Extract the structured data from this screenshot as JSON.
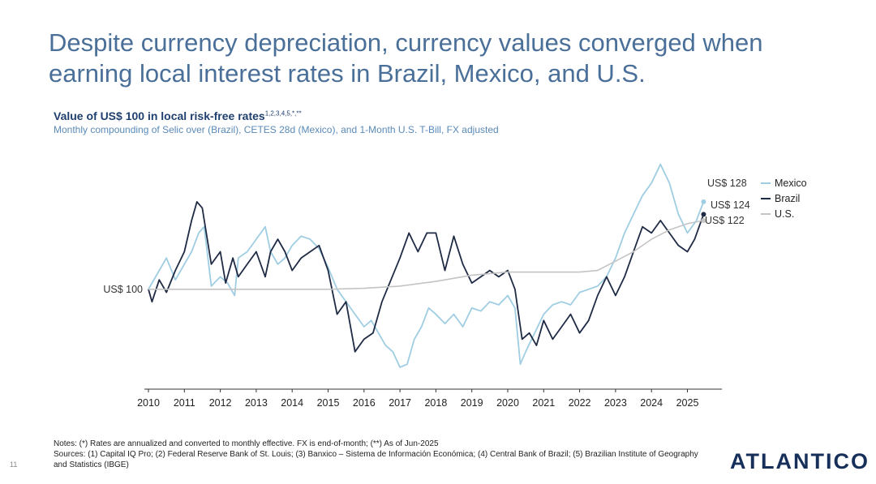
{
  "page": {
    "title": "Despite currency depreciation, currency values converged when earning local interest rates in Brazil, Mexico, and U.S.",
    "chart_title_main": "Value of US$ 100 in local risk-free rates",
    "chart_title_sup": "1,2,3,4,5,*,**",
    "chart_subtitle": "Monthly compounding of Selic over (Brazil), CETES 28d (Mexico), and 1-Month U.S. T-Bill, FX adjusted",
    "notes_line1": "Notes: (*) Rates are annualized and converted to monthly effective. FX is end-of-month; (**) As of Jun-2025",
    "notes_line2": "Sources: (1) Capital IQ Pro; (2) Federal Reserve Bank of St. Louis; (3) Banxico – Sistema de Información Económica; (4) Central Bank of Brazil; (5) Brazilian Institute of Geography and Statistics (IBGE)",
    "logo": "ATLANTICO",
    "page_number": "11"
  },
  "chart_data": {
    "type": "line",
    "x_ticks": [
      "2010",
      "2011",
      "2012",
      "2013",
      "2014",
      "2015",
      "2016",
      "2017",
      "2018",
      "2019",
      "2020",
      "2021",
      "2022",
      "2023",
      "2024",
      "2025"
    ],
    "xlim": [
      2010.0,
      2026.0
    ],
    "ylim": [
      68,
      142
    ],
    "grid": false,
    "legend_position": "right",
    "annotations": [
      {
        "text": "US$ 100",
        "x": 2010.0,
        "y": 100
      },
      {
        "text": "US$ 128",
        "series": "Mexico",
        "x": 2025.45,
        "y": 128
      },
      {
        "text": "US$ 124",
        "series": "Brazil",
        "x": 2025.45,
        "y": 124
      },
      {
        "text": "US$ 122",
        "series": "U.S.",
        "x": 2025.45,
        "y": 122
      }
    ],
    "series": [
      {
        "name": "Mexico",
        "color": "#9fcde2",
        "points": [
          [
            2010.0,
            100
          ],
          [
            2010.25,
            105
          ],
          [
            2010.5,
            110
          ],
          [
            2010.75,
            103
          ],
          [
            2011.0,
            108
          ],
          [
            2011.2,
            112
          ],
          [
            2011.4,
            118
          ],
          [
            2011.55,
            120
          ],
          [
            2011.75,
            101
          ],
          [
            2012.0,
            104
          ],
          [
            2012.2,
            102
          ],
          [
            2012.4,
            98
          ],
          [
            2012.5,
            110
          ],
          [
            2012.75,
            112
          ],
          [
            2013.0,
            116
          ],
          [
            2013.25,
            120
          ],
          [
            2013.4,
            112
          ],
          [
            2013.6,
            108
          ],
          [
            2013.8,
            110
          ],
          [
            2014.0,
            114
          ],
          [
            2014.25,
            117
          ],
          [
            2014.5,
            116
          ],
          [
            2014.75,
            113
          ],
          [
            2015.0,
            107
          ],
          [
            2015.25,
            100
          ],
          [
            2015.5,
            96
          ],
          [
            2015.75,
            92
          ],
          [
            2016.0,
            88
          ],
          [
            2016.2,
            90
          ],
          [
            2016.4,
            86
          ],
          [
            2016.6,
            82
          ],
          [
            2016.8,
            80
          ],
          [
            2017.0,
            75
          ],
          [
            2017.2,
            76
          ],
          [
            2017.4,
            84
          ],
          [
            2017.6,
            88
          ],
          [
            2017.8,
            94
          ],
          [
            2018.0,
            92
          ],
          [
            2018.25,
            89
          ],
          [
            2018.5,
            92
          ],
          [
            2018.75,
            88
          ],
          [
            2019.0,
            94
          ],
          [
            2019.25,
            93
          ],
          [
            2019.5,
            96
          ],
          [
            2019.75,
            95
          ],
          [
            2020.0,
            98
          ],
          [
            2020.2,
            94
          ],
          [
            2020.35,
            76
          ],
          [
            2020.5,
            80
          ],
          [
            2020.75,
            86
          ],
          [
            2021.0,
            92
          ],
          [
            2021.25,
            95
          ],
          [
            2021.5,
            96
          ],
          [
            2021.75,
            95
          ],
          [
            2022.0,
            99
          ],
          [
            2022.25,
            100
          ],
          [
            2022.5,
            101
          ],
          [
            2022.75,
            104
          ],
          [
            2023.0,
            110
          ],
          [
            2023.25,
            118
          ],
          [
            2023.5,
            124
          ],
          [
            2023.75,
            130
          ],
          [
            2024.0,
            134
          ],
          [
            2024.25,
            140
          ],
          [
            2024.5,
            134
          ],
          [
            2024.75,
            124
          ],
          [
            2025.0,
            118
          ],
          [
            2025.25,
            122
          ],
          [
            2025.45,
            128
          ]
        ]
      },
      {
        "name": "Brazil",
        "color": "#1f2a44",
        "points": [
          [
            2010.0,
            100
          ],
          [
            2010.1,
            96
          ],
          [
            2010.3,
            103
          ],
          [
            2010.5,
            99
          ],
          [
            2010.75,
            106
          ],
          [
            2011.0,
            112
          ],
          [
            2011.2,
            122
          ],
          [
            2011.35,
            128
          ],
          [
            2011.5,
            126
          ],
          [
            2011.75,
            108
          ],
          [
            2012.0,
            112
          ],
          [
            2012.15,
            102
          ],
          [
            2012.35,
            110
          ],
          [
            2012.5,
            104
          ],
          [
            2012.75,
            108
          ],
          [
            2013.0,
            112
          ],
          [
            2013.25,
            104
          ],
          [
            2013.4,
            112
          ],
          [
            2013.6,
            116
          ],
          [
            2013.8,
            112
          ],
          [
            2014.0,
            106
          ],
          [
            2014.25,
            110
          ],
          [
            2014.5,
            112
          ],
          [
            2014.75,
            114
          ],
          [
            2015.0,
            106
          ],
          [
            2015.25,
            92
          ],
          [
            2015.5,
            96
          ],
          [
            2015.75,
            80
          ],
          [
            2016.0,
            84
          ],
          [
            2016.25,
            86
          ],
          [
            2016.5,
            96
          ],
          [
            2016.75,
            103
          ],
          [
            2017.0,
            110
          ],
          [
            2017.25,
            118
          ],
          [
            2017.5,
            112
          ],
          [
            2017.75,
            118
          ],
          [
            2018.0,
            118
          ],
          [
            2018.25,
            106
          ],
          [
            2018.5,
            117
          ],
          [
            2018.75,
            108
          ],
          [
            2019.0,
            102
          ],
          [
            2019.25,
            104
          ],
          [
            2019.5,
            106
          ],
          [
            2019.75,
            104
          ],
          [
            2020.0,
            106
          ],
          [
            2020.2,
            100
          ],
          [
            2020.4,
            84
          ],
          [
            2020.6,
            86
          ],
          [
            2020.8,
            82
          ],
          [
            2021.0,
            90
          ],
          [
            2021.25,
            84
          ],
          [
            2021.5,
            88
          ],
          [
            2021.75,
            92
          ],
          [
            2022.0,
            86
          ],
          [
            2022.25,
            90
          ],
          [
            2022.5,
            98
          ],
          [
            2022.75,
            104
          ],
          [
            2023.0,
            98
          ],
          [
            2023.25,
            104
          ],
          [
            2023.5,
            112
          ],
          [
            2023.75,
            120
          ],
          [
            2024.0,
            118
          ],
          [
            2024.25,
            122
          ],
          [
            2024.5,
            118
          ],
          [
            2024.75,
            114
          ],
          [
            2025.0,
            112
          ],
          [
            2025.2,
            116
          ],
          [
            2025.45,
            124
          ]
        ]
      },
      {
        "name": "U.S.",
        "color": "#c4c4c4",
        "points": [
          [
            2010.0,
            100
          ],
          [
            2011.0,
            100
          ],
          [
            2012.0,
            100
          ],
          [
            2013.0,
            100
          ],
          [
            2014.0,
            100
          ],
          [
            2015.0,
            100
          ],
          [
            2016.0,
            100.3
          ],
          [
            2017.0,
            101
          ],
          [
            2018.0,
            102.5
          ],
          [
            2019.0,
            104.5
          ],
          [
            2020.0,
            105.5
          ],
          [
            2021.0,
            105.5
          ],
          [
            2022.0,
            105.5
          ],
          [
            2022.5,
            106
          ],
          [
            2023.0,
            109
          ],
          [
            2023.5,
            112
          ],
          [
            2024.0,
            116
          ],
          [
            2024.5,
            119
          ],
          [
            2025.0,
            121
          ],
          [
            2025.45,
            122
          ]
        ]
      }
    ]
  }
}
